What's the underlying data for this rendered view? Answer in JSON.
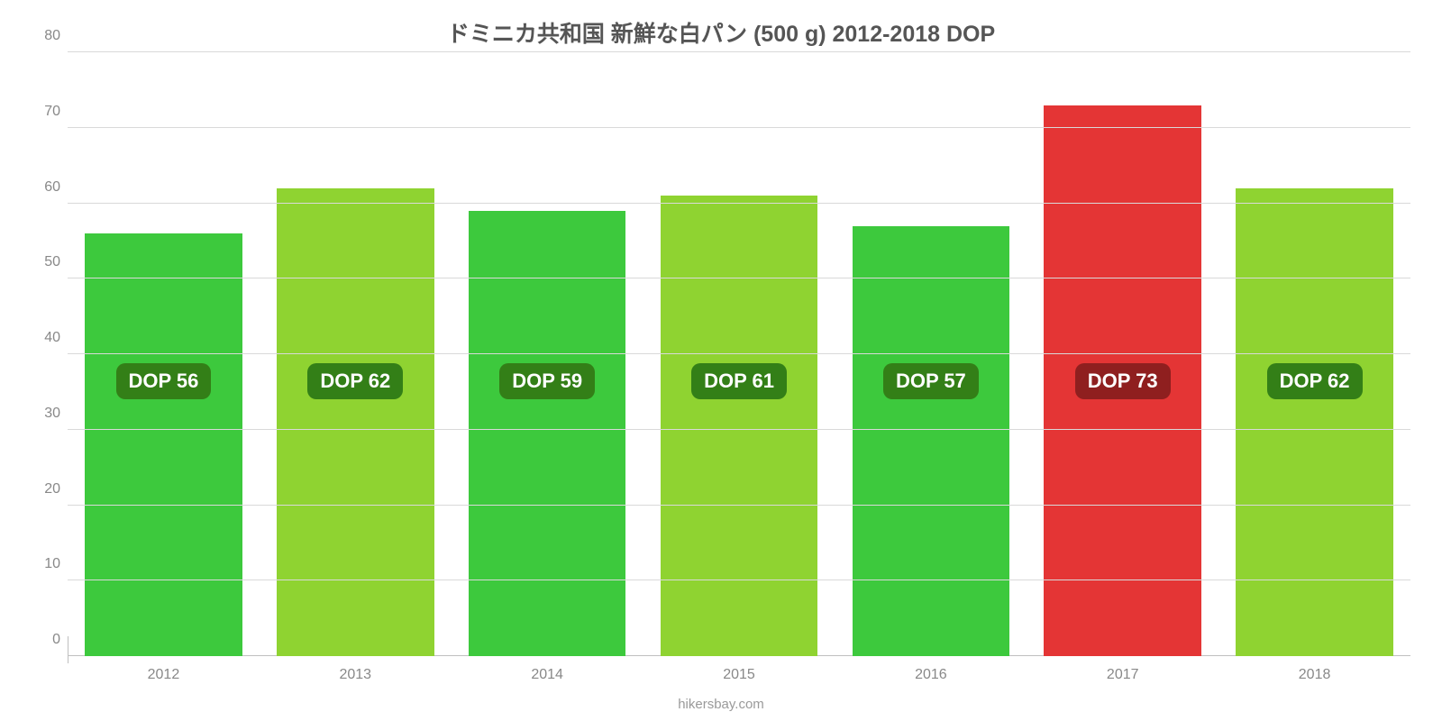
{
  "chart": {
    "type": "bar",
    "title": "ドミニカ共和国 新鮮な白パン (500 g) 2012-2018 DOP",
    "title_fontsize": 25,
    "title_color": "#555555",
    "categories": [
      "2012",
      "2013",
      "2014",
      "2015",
      "2016",
      "2017",
      "2018"
    ],
    "values": [
      56,
      62,
      59,
      61,
      57,
      73,
      62
    ],
    "value_labels": [
      "DOP 56",
      "DOP 62",
      "DOP 59",
      "DOP 61",
      "DOP 57",
      "DOP 73",
      "DOP 62"
    ],
    "bar_colors": [
      "#3dc93d",
      "#8fd331",
      "#3dc93d",
      "#8fd331",
      "#3dc93d",
      "#e43535",
      "#8fd331"
    ],
    "badge_bg_colors": [
      "#337f17",
      "#337f17",
      "#337f17",
      "#337f17",
      "#337f17",
      "#8f1f1f",
      "#337f17"
    ],
    "badge_text_color": "#ffffff",
    "badge_fontsize": 22,
    "badge_y_value": 34,
    "ylim": [
      0,
      80
    ],
    "yticks": [
      0,
      10,
      20,
      30,
      40,
      50,
      60,
      70,
      80
    ],
    "y_label_fontsize": 16,
    "y_label_color": "#888888",
    "x_label_fontsize": 16,
    "x_label_color": "#888888",
    "grid_color": "#d9d9d9",
    "axis_color": "#bfbfbf",
    "background_color": "#ffffff",
    "bar_width": 0.82,
    "attribution": "hikersbay.com",
    "attribution_fontsize": 15,
    "attribution_color": "#9a9a9a"
  }
}
